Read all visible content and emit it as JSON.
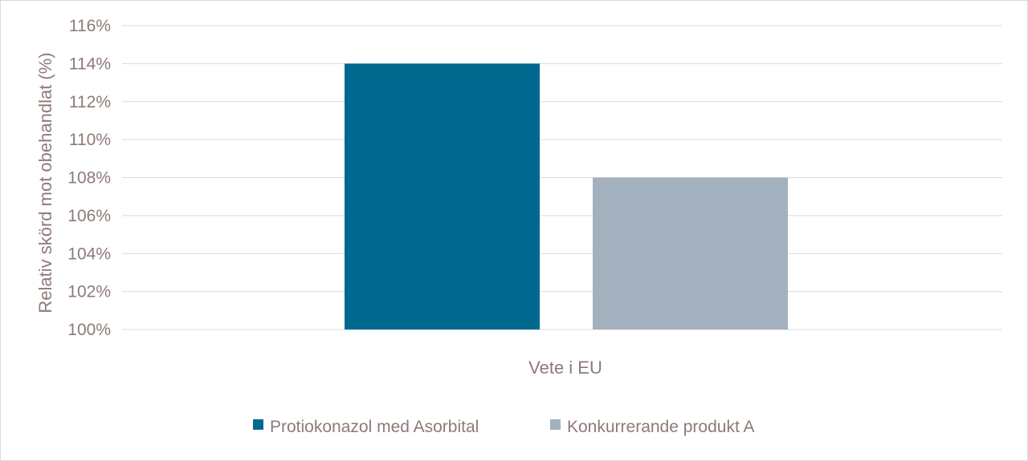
{
  "chart_data": {
    "type": "bar",
    "title": "",
    "xlabel": "",
    "ylabel": "Relativ skörd mot obehandlat (%)",
    "categories": [
      "Vete i EU"
    ],
    "ylim": [
      100,
      116
    ],
    "yticks": [
      100,
      102,
      104,
      106,
      108,
      110,
      112,
      114,
      116
    ],
    "ytick_suffix": "%",
    "grid": true,
    "legend_position": "bottom",
    "series": [
      {
        "name": "Protiokonazol med Asorbital",
        "values": [
          114
        ],
        "color": "#00698f"
      },
      {
        "name": "Konkurrerande produkt A",
        "values": [
          108
        ],
        "color": "#a2b1bd"
      }
    ]
  }
}
